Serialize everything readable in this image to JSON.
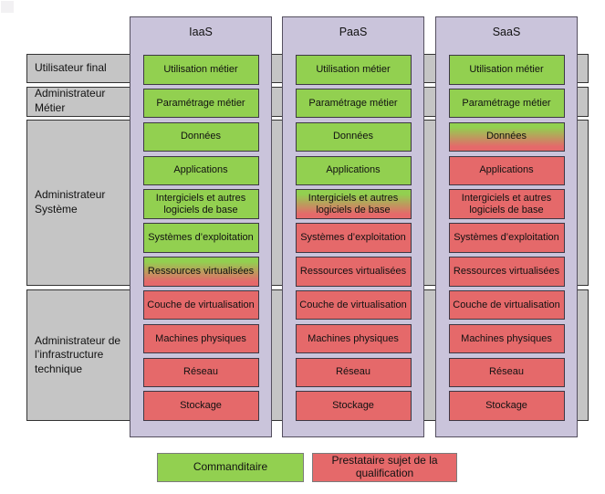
{
  "roles": [
    {
      "label": "Utilisateur final"
    },
    {
      "label": "Administrateur Métier"
    },
    {
      "label": "Administrateur Système"
    },
    {
      "label": "Administrateur de l’infrastructure technique"
    }
  ],
  "columns": [
    {
      "title": "IaaS",
      "layers": [
        {
          "label": "Utilisation métier",
          "status": "green"
        },
        {
          "label": "Paramétrage métier",
          "status": "green"
        },
        {
          "label": "Données",
          "status": "green"
        },
        {
          "label": "Applications",
          "status": "green"
        },
        {
          "label": "Intergiciels et autres logiciels de base",
          "status": "green"
        },
        {
          "label": "Systèmes d’exploitation",
          "status": "green"
        },
        {
          "label": "Ressources virtualisées",
          "status": "gradient"
        },
        {
          "label": "Couche de virtualisation",
          "status": "red"
        },
        {
          "label": "Machines physiques",
          "status": "red"
        },
        {
          "label": "Réseau",
          "status": "red"
        },
        {
          "label": "Stockage",
          "status": "red"
        }
      ]
    },
    {
      "title": "PaaS",
      "layers": [
        {
          "label": "Utilisation métier",
          "status": "green"
        },
        {
          "label": "Paramétrage métier",
          "status": "green"
        },
        {
          "label": "Données",
          "status": "green"
        },
        {
          "label": "Applications",
          "status": "green"
        },
        {
          "label": "Intergiciels et autres logiciels de base",
          "status": "gradient"
        },
        {
          "label": "Systèmes d’exploitation",
          "status": "red"
        },
        {
          "label": "Ressources virtualisées",
          "status": "red"
        },
        {
          "label": "Couche de virtualisation",
          "status": "red"
        },
        {
          "label": "Machines physiques",
          "status": "red"
        },
        {
          "label": "Réseau",
          "status": "red"
        },
        {
          "label": "Stockage",
          "status": "red"
        }
      ]
    },
    {
      "title": "SaaS",
      "layers": [
        {
          "label": "Utilisation métier",
          "status": "green"
        },
        {
          "label": "Paramétrage métier",
          "status": "green"
        },
        {
          "label": "Données",
          "status": "gradient"
        },
        {
          "label": "Applications",
          "status": "red"
        },
        {
          "label": "Intergiciels et autres logiciels de base",
          "status": "red"
        },
        {
          "label": "Systèmes d’exploitation",
          "status": "red"
        },
        {
          "label": "Ressources virtualisées",
          "status": "red"
        },
        {
          "label": "Couche de virtualisation",
          "status": "red"
        },
        {
          "label": "Machines physiques",
          "status": "red"
        },
        {
          "label": "Réseau",
          "status": "red"
        },
        {
          "label": "Stockage",
          "status": "red"
        }
      ]
    }
  ],
  "legend": [
    {
      "label": "Commanditaire",
      "status": "green"
    },
    {
      "label": "Prestataire sujet de la qualification",
      "status": "red"
    }
  ],
  "colors": {
    "green": "#92d050",
    "red": "#e5696a",
    "column_background": "#cac4db",
    "band_background": "#c5c5c5"
  }
}
